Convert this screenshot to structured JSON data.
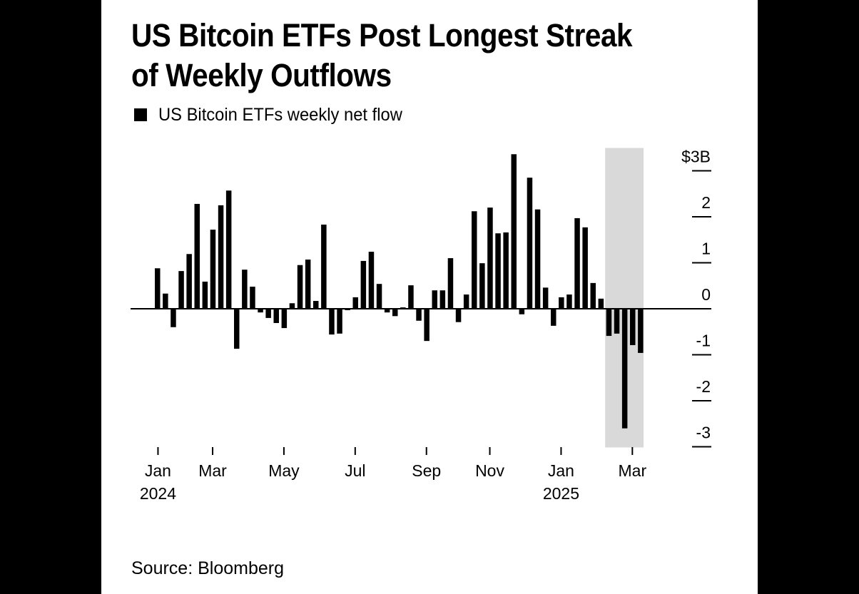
{
  "title_lines": [
    "US Bitcoin ETFs Post Longest Streak",
    "of Weekly Outflows"
  ],
  "legend": {
    "label": "US Bitcoin ETFs weekly net flow",
    "color": "#000000"
  },
  "source": "Source: Bloomberg",
  "colors": {
    "background": "#000000",
    "panel": "#ffffff",
    "bar": "#000000",
    "highlight": "#d9d9d9"
  },
  "chart_data": {
    "type": "bar",
    "title": "US Bitcoin ETFs Post Longest Streak of Weekly Outflows",
    "series": [
      {
        "name": "US Bitcoin ETFs weekly net flow",
        "unit": "$B",
        "values": [
          0.88,
          0.33,
          -0.4,
          0.82,
          1.19,
          2.28,
          0.59,
          1.72,
          2.25,
          2.57,
          -0.87,
          0.85,
          0.48,
          -0.08,
          -0.2,
          -0.31,
          -0.42,
          0.12,
          0.95,
          1.07,
          0.17,
          1.83,
          -0.56,
          -0.54,
          -0.03,
          0.25,
          1.04,
          1.24,
          0.54,
          -0.08,
          -0.16,
          0.03,
          0.51,
          -0.26,
          -0.7,
          0.4,
          0.4,
          1.1,
          -0.29,
          0.31,
          2.12,
          0.99,
          2.2,
          1.64,
          1.66,
          3.36,
          -0.12,
          2.85,
          2.16,
          0.46,
          -0.37,
          0.25,
          0.31,
          1.97,
          1.77,
          0.56,
          0.22,
          -0.59,
          -0.54,
          -2.6,
          -0.79,
          -0.96
        ]
      }
    ],
    "x_period": "weekly, Jan 2024 – Mar 2025",
    "x_ticks": [
      {
        "label": "Jan",
        "sublabel": "2024",
        "week_index": 0.4
      },
      {
        "label": "Mar",
        "sublabel": "",
        "week_index": 7.3
      },
      {
        "label": "May",
        "sublabel": "",
        "week_index": 16.3
      },
      {
        "label": "Jul",
        "sublabel": "",
        "week_index": 25.3
      },
      {
        "label": "Sep",
        "sublabel": "",
        "week_index": 34.3
      },
      {
        "label": "Nov",
        "sublabel": "",
        "week_index": 42.3
      },
      {
        "label": "Jan",
        "sublabel": "2025",
        "week_index": 51.3
      },
      {
        "label": "Mar",
        "sublabel": "",
        "week_index": 60.3
      }
    ],
    "y_ticks": [
      {
        "value": 3,
        "label": "$3B"
      },
      {
        "value": 2,
        "label": "2"
      },
      {
        "value": 1,
        "label": "1"
      },
      {
        "value": 0,
        "label": "0"
      },
      {
        "value": -1,
        "label": "-1"
      },
      {
        "value": -2,
        "label": "-2"
      },
      {
        "value": -3,
        "label": "-3"
      }
    ],
    "ylim": [
      -3,
      3
    ],
    "y_axis_side": "right",
    "highlight": {
      "from_week_index": 57,
      "to_week_index": 61,
      "description": "streak of weekly outflows"
    },
    "grid": false,
    "legend_position": "top-left"
  }
}
